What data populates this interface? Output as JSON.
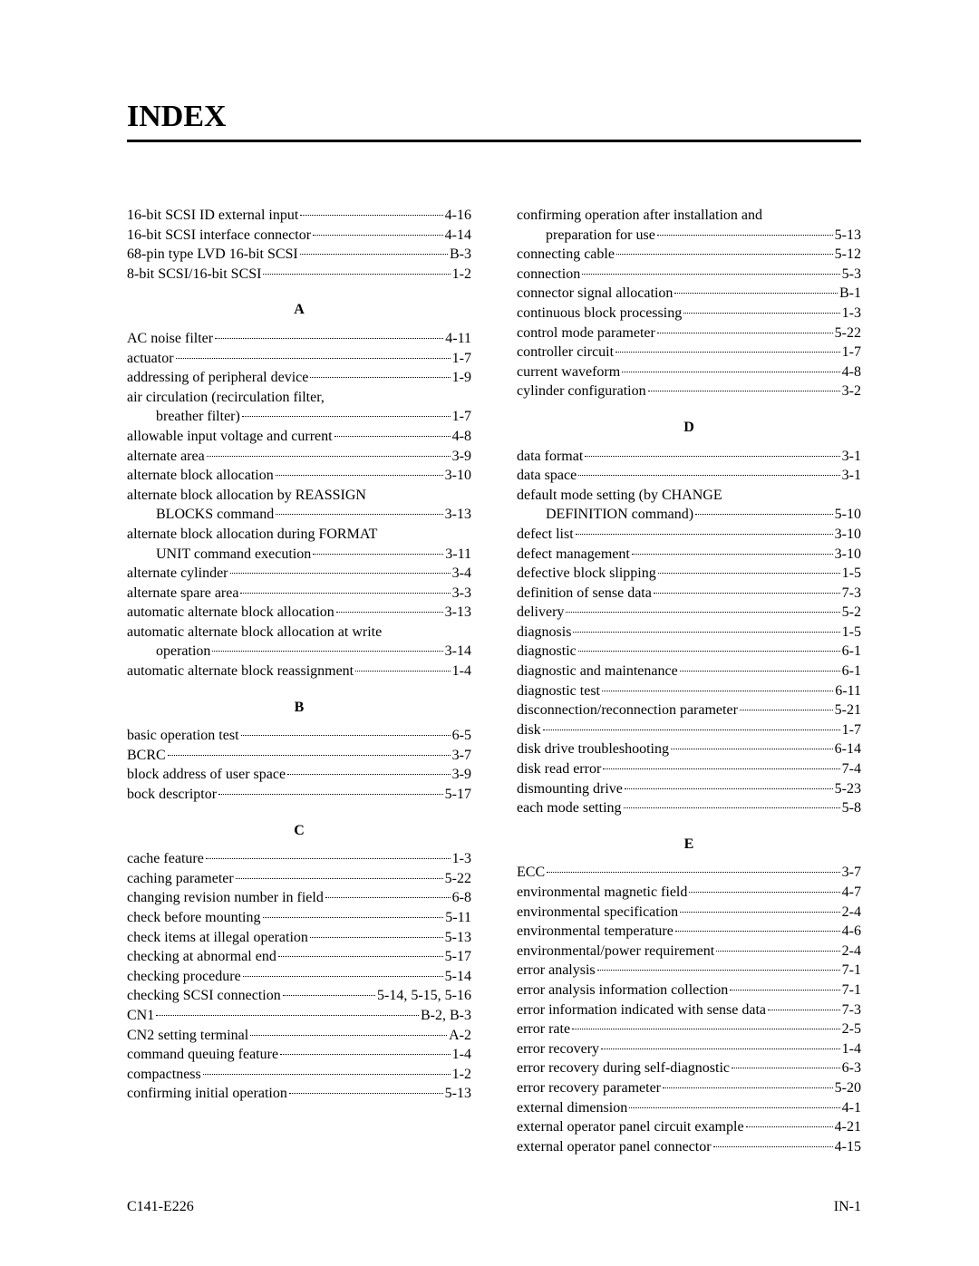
{
  "title": "INDEX",
  "footer": {
    "left": "C141-E226",
    "right": "IN-1"
  },
  "columns": [
    {
      "groups": [
        {
          "letter": null,
          "entries": [
            {
              "term": "16-bit SCSI ID external input",
              "page": "4-16"
            },
            {
              "term": "16-bit SCSI interface connector",
              "page": "4-14"
            },
            {
              "term": "68-pin type LVD 16-bit SCSI",
              "page": "B-3"
            },
            {
              "term": "8-bit SCSI/16-bit SCSI",
              "page": "1-2"
            }
          ]
        },
        {
          "letter": "A",
          "entries": [
            {
              "term": "AC noise filter",
              "page": "4-11"
            },
            {
              "term": "actuator",
              "page": "1-7"
            },
            {
              "term": "addressing of peripheral device",
              "page": "1-9"
            },
            {
              "term": "air circulation (recirculation filter,",
              "page": "",
              "noleader": true
            },
            {
              "term": "breather filter)",
              "page": "1-7",
              "cont": true
            },
            {
              "term": "allowable input voltage and current",
              "page": "4-8"
            },
            {
              "term": "alternate area",
              "page": "3-9"
            },
            {
              "term": "alternate block allocation",
              "page": "3-10"
            },
            {
              "term": "alternate block allocation by REASSIGN",
              "page": "",
              "noleader": true
            },
            {
              "term": "BLOCKS command",
              "page": "3-13",
              "cont": true
            },
            {
              "term": "alternate block allocation during FORMAT",
              "page": "",
              "noleader": true
            },
            {
              "term": "UNIT command execution",
              "page": "3-11",
              "cont": true
            },
            {
              "term": "alternate cylinder",
              "page": "3-4"
            },
            {
              "term": "alternate spare area",
              "page": "3-3"
            },
            {
              "term": "automatic alternate block allocation",
              "page": "3-13"
            },
            {
              "term": "automatic alternate block allocation at write",
              "page": "",
              "noleader": true
            },
            {
              "term": "operation",
              "page": "3-14",
              "cont": true
            },
            {
              "term": "automatic alternate block reassignment",
              "page": "1-4"
            }
          ]
        },
        {
          "letter": "B",
          "entries": [
            {
              "term": "basic operation test",
              "page": "6-5"
            },
            {
              "term": "BCRC",
              "page": "3-7"
            },
            {
              "term": "block address of user space",
              "page": "3-9"
            },
            {
              "term": "bock descriptor",
              "page": "5-17"
            }
          ]
        },
        {
          "letter": "C",
          "entries": [
            {
              "term": "cache feature",
              "page": "1-3"
            },
            {
              "term": "caching parameter",
              "page": "5-22"
            },
            {
              "term": "changing revision number in field",
              "page": "6-8"
            },
            {
              "term": "check before mounting",
              "page": "5-11"
            },
            {
              "term": "check items at illegal operation",
              "page": "5-13"
            },
            {
              "term": "checking at abnormal end",
              "page": "5-17"
            },
            {
              "term": "checking procedure",
              "page": "5-14"
            },
            {
              "term": "checking SCSI connection",
              "page": "5-14, 5-15, 5-16"
            },
            {
              "term": "CN1",
              "page": "B-2, B-3"
            },
            {
              "term": "CN2 setting terminal",
              "page": "A-2"
            },
            {
              "term": "command queuing feature",
              "page": "1-4"
            },
            {
              "term": "compactness",
              "page": "1-2"
            },
            {
              "term": "confirming initial operation",
              "page": "5-13"
            }
          ]
        }
      ]
    },
    {
      "groups": [
        {
          "letter": null,
          "entries": [
            {
              "term": "confirming operation after installation and",
              "page": "",
              "noleader": true
            },
            {
              "term": "preparation for use",
              "page": "5-13",
              "cont": true
            },
            {
              "term": "connecting cable",
              "page": "5-12"
            },
            {
              "term": "connection",
              "page": "5-3"
            },
            {
              "term": "connector signal allocation",
              "page": "B-1"
            },
            {
              "term": "continuous block processing",
              "page": "1-3"
            },
            {
              "term": "control mode parameter",
              "page": "5-22"
            },
            {
              "term": "controller circuit",
              "page": "1-7"
            },
            {
              "term": "current waveform",
              "page": "4-8"
            },
            {
              "term": "cylinder configuration",
              "page": "3-2"
            }
          ]
        },
        {
          "letter": "D",
          "entries": [
            {
              "term": "data format",
              "page": "3-1"
            },
            {
              "term": "data space",
              "page": "3-1"
            },
            {
              "term": "default mode setting (by CHANGE",
              "page": "",
              "noleader": true
            },
            {
              "term": "DEFINITION command)",
              "page": "5-10",
              "cont": true
            },
            {
              "term": "defect list",
              "page": "3-10"
            },
            {
              "term": "defect management",
              "page": "3-10"
            },
            {
              "term": "defective block slipping",
              "page": "1-5"
            },
            {
              "term": "definition of sense data",
              "page": "7-3"
            },
            {
              "term": "delivery",
              "page": "5-2"
            },
            {
              "term": "diagnosis",
              "page": "1-5"
            },
            {
              "term": "diagnostic",
              "page": "6-1"
            },
            {
              "term": "diagnostic and maintenance",
              "page": "6-1"
            },
            {
              "term": "diagnostic test",
              "page": "6-11"
            },
            {
              "term": "disconnection/reconnection parameter",
              "page": "5-21"
            },
            {
              "term": "disk",
              "page": "1-7"
            },
            {
              "term": "disk drive troubleshooting",
              "page": "6-14"
            },
            {
              "term": "disk read error",
              "page": "7-4"
            },
            {
              "term": "dismounting drive",
              "page": "5-23"
            },
            {
              "term": "each mode setting",
              "page": "5-8"
            }
          ]
        },
        {
          "letter": "E",
          "entries": [
            {
              "term": "ECC",
              "page": "3-7"
            },
            {
              "term": "environmental magnetic field",
              "page": "4-7"
            },
            {
              "term": "environmental specification",
              "page": "2-4"
            },
            {
              "term": "environmental temperature",
              "page": "4-6"
            },
            {
              "term": "environmental/power requirement",
              "page": "2-4"
            },
            {
              "term": "error analysis",
              "page": "7-1"
            },
            {
              "term": "error analysis information collection",
              "page": "7-1"
            },
            {
              "term": "error information indicated with sense data",
              "page": "7-3"
            },
            {
              "term": "error rate",
              "page": "2-5"
            },
            {
              "term": "error recovery",
              "page": "1-4"
            },
            {
              "term": "error recovery during self-diagnostic",
              "page": "6-3"
            },
            {
              "term": "error recovery parameter",
              "page": "5-20"
            },
            {
              "term": "external dimension",
              "page": "4-1"
            },
            {
              "term": "external operator panel circuit example",
              "page": "4-21"
            },
            {
              "term": "external operator panel connector",
              "page": "4-15"
            }
          ]
        }
      ]
    }
  ]
}
